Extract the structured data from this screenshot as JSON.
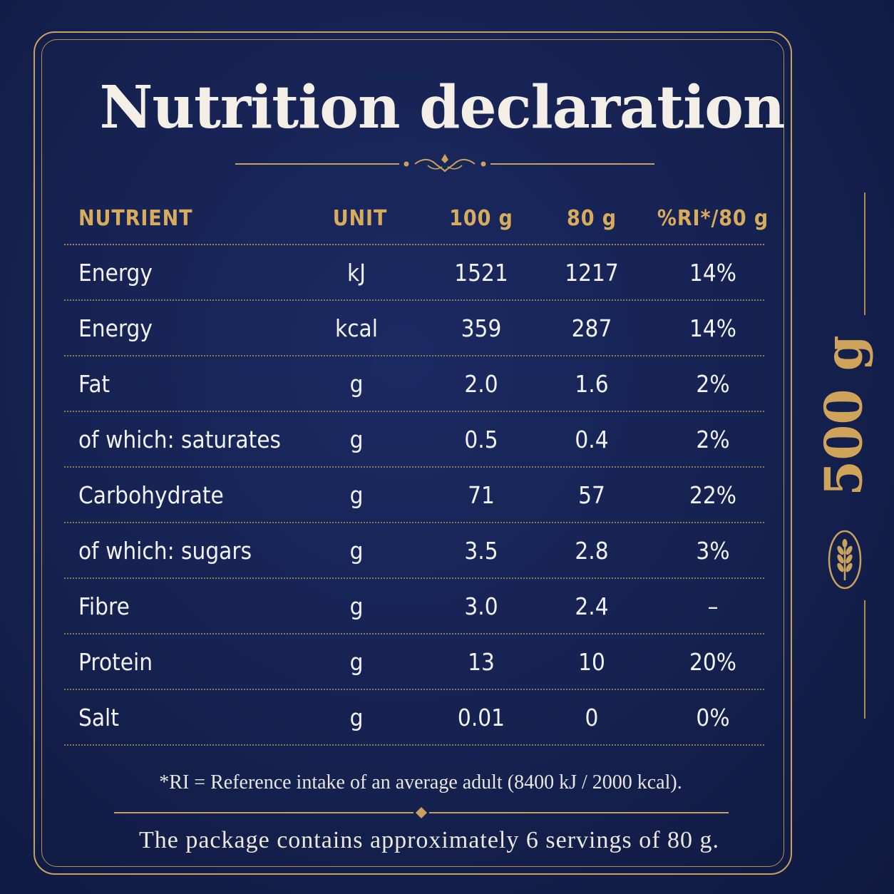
{
  "title": "Nutrition declaration",
  "table": {
    "headers": {
      "nutrient": "NUTRIENT",
      "unit": "UNIT",
      "per100": "100 g",
      "per80": "80 g",
      "ri": "%RI*/80 g"
    },
    "rows": [
      {
        "nutrient": "Energy",
        "unit": "kJ",
        "per100": "1521",
        "per80": "1217",
        "ri": "14%"
      },
      {
        "nutrient": "Energy",
        "unit": "kcal",
        "per100": "359",
        "per80": "287",
        "ri": "14%"
      },
      {
        "nutrient": "Fat",
        "unit": "g",
        "per100": "2.0",
        "per80": "1.6",
        "ri": "2%"
      },
      {
        "nutrient": "of which: saturates",
        "unit": "g",
        "per100": "0.5",
        "per80": "0.4",
        "ri": "2%"
      },
      {
        "nutrient": "Carbohydrate",
        "unit": "g",
        "per100": "71",
        "per80": "57",
        "ri": "22%"
      },
      {
        "nutrient": "of which: sugars",
        "unit": "g",
        "per100": "3.5",
        "per80": "2.8",
        "ri": "3%"
      },
      {
        "nutrient": "Fibre",
        "unit": "g",
        "per100": "3.0",
        "per80": "2.4",
        "ri": "–"
      },
      {
        "nutrient": "Protein",
        "unit": "g",
        "per100": "13",
        "per80": "10",
        "ri": "20%"
      },
      {
        "nutrient": "Salt",
        "unit": "g",
        "per100": "0.01",
        "per80": "0",
        "ri": "0%"
      }
    ]
  },
  "footnote": "*RI = Reference intake of an average adult (8400 kJ / 2000 kcal).",
  "servings_note": "The package contains approximately 6 servings of 80 g.",
  "side": {
    "weight": "500 g",
    "emblem_icon": "wheat-icon"
  },
  "colors": {
    "background": "#16224f",
    "gold": "#cfa45a",
    "text": "#f2f2f4"
  }
}
